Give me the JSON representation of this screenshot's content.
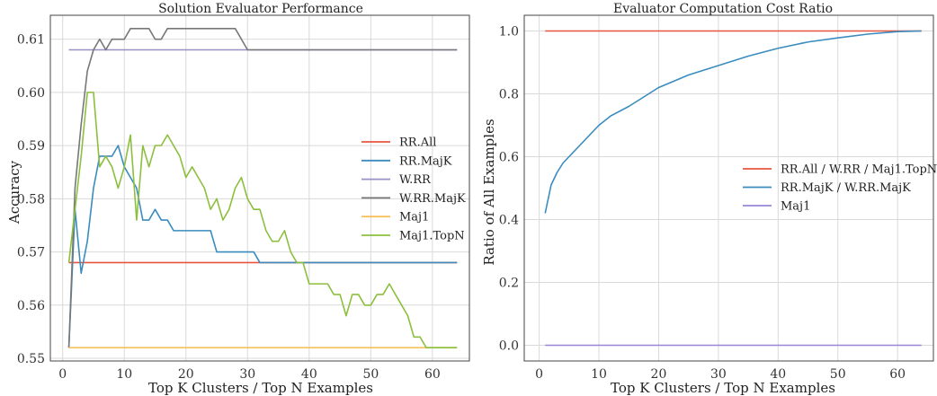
{
  "colors": {
    "rr_all": "#e8553f",
    "rr_majk": "#3a8cbf",
    "w_rr": "#9b8fc7",
    "w_rr_majk": "#777777",
    "maj1": "#f6c05a",
    "maj1_topn": "#8dbf3e",
    "maj1_right": "#9a86d8"
  },
  "chart_data": [
    {
      "type": "line",
      "title": "Solution Evaluator Performance",
      "xlabel": "Top K Clusters / Top N Examples",
      "ylabel": "Accuracy",
      "xlim": [
        -2,
        66
      ],
      "ylim": [
        0.5495,
        0.6145
      ],
      "xticks": [
        0,
        10,
        20,
        30,
        40,
        50,
        60
      ],
      "yticks": [
        0.55,
        0.56,
        0.57,
        0.58,
        0.59,
        0.6,
        0.61
      ],
      "ytick_labels": [
        "0.55",
        "0.56",
        "0.57",
        "0.58",
        "0.59",
        "0.60",
        "0.61"
      ],
      "grid": true,
      "legend_position": "center-right",
      "series": [
        {
          "name": "RR.All",
          "color_key": "rr_all",
          "points": [
            [
              1,
              0.568
            ],
            [
              64,
              0.568
            ]
          ]
        },
        {
          "name": "RR.MajK",
          "color_key": "rr_majk",
          "points": [
            [
              1,
              0.552
            ],
            [
              2,
              0.578
            ],
            [
              3,
              0.566
            ],
            [
              4,
              0.572
            ],
            [
              5,
              0.582
            ],
            [
              6,
              0.588
            ],
            [
              7,
              0.588
            ],
            [
              8,
              0.588
            ],
            [
              9,
              0.59
            ],
            [
              10,
              0.586
            ],
            [
              11,
              0.584
            ],
            [
              12,
              0.582
            ],
            [
              13,
              0.576
            ],
            [
              14,
              0.576
            ],
            [
              15,
              0.578
            ],
            [
              16,
              0.576
            ],
            [
              17,
              0.576
            ],
            [
              18,
              0.574
            ],
            [
              19,
              0.574
            ],
            [
              20,
              0.574
            ],
            [
              21,
              0.574
            ],
            [
              22,
              0.574
            ],
            [
              23,
              0.574
            ],
            [
              24,
              0.574
            ],
            [
              25,
              0.57
            ],
            [
              26,
              0.57
            ],
            [
              27,
              0.57
            ],
            [
              28,
              0.57
            ],
            [
              29,
              0.57
            ],
            [
              30,
              0.57
            ],
            [
              31,
              0.57
            ],
            [
              32,
              0.568
            ],
            [
              64,
              0.568
            ]
          ]
        },
        {
          "name": "W.RR",
          "color_key": "w_rr",
          "points": [
            [
              1,
              0.608
            ],
            [
              64,
              0.608
            ]
          ]
        },
        {
          "name": "W.RR.MajK",
          "color_key": "w_rr_majk",
          "points": [
            [
              1,
              0.552
            ],
            [
              2,
              0.582
            ],
            [
              3,
              0.594
            ],
            [
              4,
              0.604
            ],
            [
              5,
              0.608
            ],
            [
              6,
              0.61
            ],
            [
              7,
              0.608
            ],
            [
              8,
              0.61
            ],
            [
              9,
              0.61
            ],
            [
              10,
              0.61
            ],
            [
              11,
              0.612
            ],
            [
              12,
              0.612
            ],
            [
              13,
              0.612
            ],
            [
              14,
              0.612
            ],
            [
              15,
              0.61
            ],
            [
              16,
              0.61
            ],
            [
              17,
              0.612
            ],
            [
              18,
              0.612
            ],
            [
              19,
              0.612
            ],
            [
              20,
              0.612
            ],
            [
              21,
              0.612
            ],
            [
              22,
              0.612
            ],
            [
              23,
              0.612
            ],
            [
              24,
              0.612
            ],
            [
              25,
              0.612
            ],
            [
              26,
              0.612
            ],
            [
              27,
              0.612
            ],
            [
              28,
              0.612
            ],
            [
              29,
              0.61
            ],
            [
              30,
              0.608
            ],
            [
              64,
              0.608
            ]
          ]
        },
        {
          "name": "Maj1",
          "color_key": "maj1",
          "points": [
            [
              1,
              0.552
            ],
            [
              64,
              0.552
            ]
          ]
        },
        {
          "name": "Maj1.TopN",
          "color_key": "maj1_topn",
          "points": [
            [
              1,
              0.568
            ],
            [
              2,
              0.578
            ],
            [
              3,
              0.588
            ],
            [
              4,
              0.6
            ],
            [
              5,
              0.6
            ],
            [
              6,
              0.586
            ],
            [
              7,
              0.588
            ],
            [
              8,
              0.586
            ],
            [
              9,
              0.582
            ],
            [
              10,
              0.586
            ],
            [
              11,
              0.592
            ],
            [
              12,
              0.576
            ],
            [
              13,
              0.59
            ],
            [
              14,
              0.586
            ],
            [
              15,
              0.59
            ],
            [
              16,
              0.59
            ],
            [
              17,
              0.592
            ],
            [
              18,
              0.59
            ],
            [
              19,
              0.588
            ],
            [
              20,
              0.584
            ],
            [
              21,
              0.586
            ],
            [
              22,
              0.584
            ],
            [
              23,
              0.582
            ],
            [
              24,
              0.578
            ],
            [
              25,
              0.58
            ],
            [
              26,
              0.576
            ],
            [
              27,
              0.578
            ],
            [
              28,
              0.582
            ],
            [
              29,
              0.584
            ],
            [
              30,
              0.58
            ],
            [
              31,
              0.578
            ],
            [
              32,
              0.578
            ],
            [
              33,
              0.574
            ],
            [
              34,
              0.572
            ],
            [
              35,
              0.572
            ],
            [
              36,
              0.574
            ],
            [
              37,
              0.57
            ],
            [
              38,
              0.568
            ],
            [
              39,
              0.568
            ],
            [
              40,
              0.564
            ],
            [
              41,
              0.564
            ],
            [
              42,
              0.564
            ],
            [
              43,
              0.564
            ],
            [
              44,
              0.562
            ],
            [
              45,
              0.562
            ],
            [
              46,
              0.558
            ],
            [
              47,
              0.562
            ],
            [
              48,
              0.562
            ],
            [
              49,
              0.56
            ],
            [
              50,
              0.56
            ],
            [
              51,
              0.562
            ],
            [
              52,
              0.562
            ],
            [
              53,
              0.564
            ],
            [
              54,
              0.562
            ],
            [
              55,
              0.56
            ],
            [
              56,
              0.558
            ],
            [
              57,
              0.554
            ],
            [
              58,
              0.554
            ],
            [
              59,
              0.552
            ],
            [
              60,
              0.552
            ],
            [
              61,
              0.552
            ],
            [
              62,
              0.552
            ],
            [
              63,
              0.552
            ],
            [
              64,
              0.552
            ]
          ]
        }
      ]
    },
    {
      "type": "line",
      "title": "Evaluator Computation Cost Ratio",
      "xlabel": "Top K Clusters / Top N Examples",
      "ylabel": "Ratio of All Examples",
      "xlim": [
        -2.5,
        66
      ],
      "ylim": [
        -0.05,
        1.05
      ],
      "xticks": [
        0,
        10,
        20,
        30,
        40,
        50,
        60
      ],
      "yticks": [
        0.0,
        0.2,
        0.4,
        0.6,
        0.8,
        1.0
      ],
      "ytick_labels": [
        "0.0",
        "0.2",
        "0.4",
        "0.6",
        "0.8",
        "1.0"
      ],
      "grid": true,
      "legend_position": "center-right",
      "series": [
        {
          "name": "RR.All / W.RR / Maj1.TopN",
          "color_key": "rr_all",
          "points": [
            [
              1,
              1.0
            ],
            [
              64,
              1.0
            ]
          ]
        },
        {
          "name": "RR.MajK / W.RR.MajK",
          "color_key": "rr_majk",
          "points": [
            [
              1,
              0.42
            ],
            [
              2,
              0.51
            ],
            [
              3,
              0.55
            ],
            [
              4,
              0.58
            ],
            [
              5,
              0.6
            ],
            [
              6,
              0.62
            ],
            [
              7,
              0.64
            ],
            [
              8,
              0.66
            ],
            [
              10,
              0.7
            ],
            [
              12,
              0.73
            ],
            [
              15,
              0.76
            ],
            [
              20,
              0.82
            ],
            [
              25,
              0.86
            ],
            [
              30,
              0.89
            ],
            [
              35,
              0.92
            ],
            [
              40,
              0.945
            ],
            [
              45,
              0.965
            ],
            [
              50,
              0.978
            ],
            [
              55,
              0.99
            ],
            [
              60,
              0.998
            ],
            [
              64,
              1.0
            ]
          ]
        },
        {
          "name": "Maj1",
          "color_key": "maj1_right",
          "points": [
            [
              1,
              0.0
            ],
            [
              64,
              0.0
            ]
          ]
        }
      ]
    }
  ]
}
